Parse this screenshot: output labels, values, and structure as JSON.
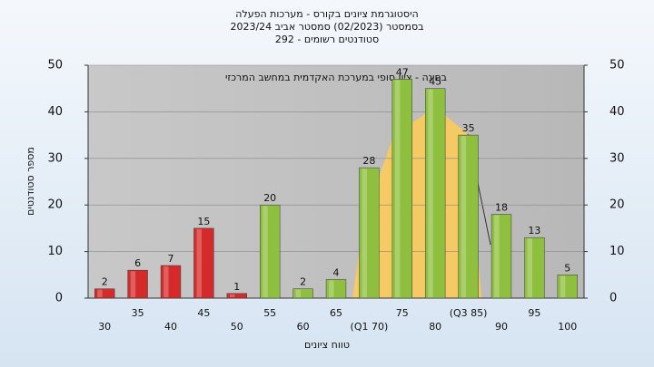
{
  "chart_data": {
    "type": "bar",
    "title": "היסטוגרמת ציונים בקורס - מערכות הפעלה",
    "subtitle": "בסמסטר  (02/2023)  סמסטר אביב 2023/24",
    "subtitle2": "סטודנטים רשומים - 292",
    "annotation": "בחינה - ציון סופי במערכת האקדמית במחשב המרכזי",
    "y_label": "מספר סטודנטים",
    "x_label": "טווח ציונים",
    "categories": [
      "30",
      "35",
      "40",
      "45",
      "50",
      "55",
      "60",
      "65",
      "(Q1 70)",
      "75",
      "80",
      "(Q3 85)",
      "90",
      "95",
      "100"
    ],
    "values": [
      2,
      6,
      7,
      15,
      1,
      20,
      2,
      4,
      28,
      47,
      45,
      35,
      18,
      13,
      5
    ],
    "colors": [
      "#d42a2a",
      "#d42a2a",
      "#d42a2a",
      "#d42a2a",
      "#d42a2a",
      "#8fbf3f",
      "#8fbf3f",
      "#8fbf3f",
      "#8fbf3f",
      "#8fbf3f",
      "#8fbf3f",
      "#8fbf3f",
      "#8fbf3f",
      "#8fbf3f",
      "#8fbf3f"
    ],
    "ylim": [
      0,
      50
    ],
    "yticks": [
      0,
      10,
      20,
      30,
      40,
      50
    ],
    "grid": true
  }
}
